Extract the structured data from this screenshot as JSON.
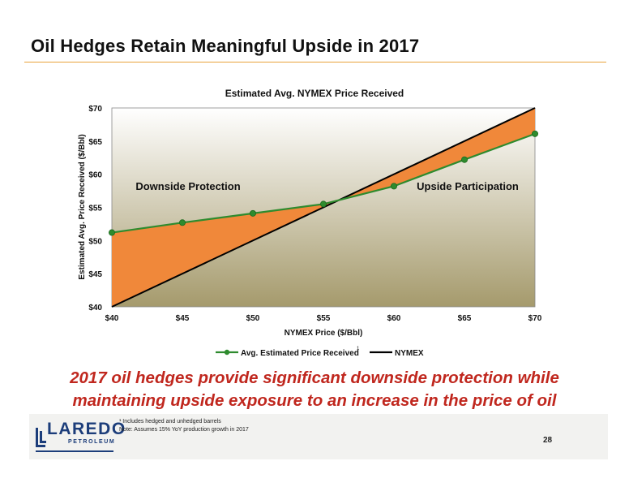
{
  "slide": {
    "title": "Oil Hedges Retain Meaningful Upside in 2017",
    "headline_line1": "2017 oil hedges provide significant downside protection while",
    "headline_line2": "maintaining upside exposure to an increase in the price of oil",
    "footnote1": "¹ Includes hedged and unhedged barrels",
    "footnote2": "Note: Assumes 15% YoY production growth in 2017",
    "page_number": "28",
    "logo_word": "LAREDO",
    "logo_sub": "PETROLEUM"
  },
  "colors": {
    "accent_line": "#e8a23a",
    "headline": "#c0271e",
    "hedge_fill": "#f0883a",
    "series_line": "#2e8b2e",
    "nymex_line": "#000000",
    "logo": "#1c3d7a"
  },
  "chart_data": {
    "type": "line",
    "title": "Estimated Avg. NYMEX Price Received",
    "xlabel": "NYMEX Price ($/Bbl)",
    "ylabel": "Estimated Avg. Price Received ($/Bbl)",
    "x": [
      40,
      45,
      50,
      55,
      60,
      65,
      70
    ],
    "x_tick_labels": [
      "$40",
      "$45",
      "$50",
      "$55",
      "$60",
      "$65",
      "$70"
    ],
    "y_tick_labels": [
      "$40",
      "$45",
      "$50",
      "$55",
      "$60",
      "$65",
      "$70"
    ],
    "xlim": [
      40,
      70
    ],
    "ylim": [
      40,
      70
    ],
    "series": [
      {
        "name": "Avg. Estimated Price Received",
        "name_superscript": "1",
        "values": [
          51.2,
          52.7,
          54.1,
          55.5,
          58.2,
          62.2,
          66.1
        ]
      },
      {
        "name": "NYMEX",
        "values": [
          40,
          45,
          50,
          55,
          60,
          65,
          70
        ]
      }
    ],
    "annotations": [
      "Downside Protection",
      "Upside Participation"
    ],
    "legend": "bottom"
  }
}
